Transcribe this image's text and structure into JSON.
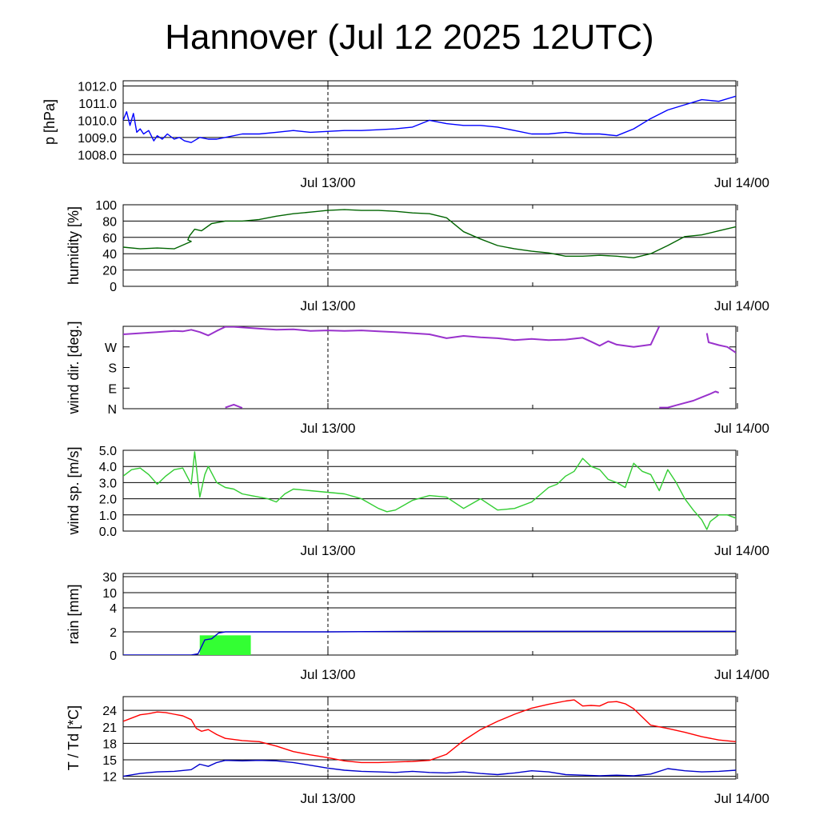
{
  "title": "Hannover (Jul 12 2025 12UTC)",
  "chart_data": [
    {
      "type": "line",
      "ylabel": "p [hPa]",
      "ylim": [
        1007.5,
        1012.3
      ],
      "yticks": [
        "1012.0",
        "1011.0",
        "1010.0",
        "1009.0",
        "1008.0"
      ],
      "ytick_values": [
        1012,
        1011,
        1010,
        1009,
        1008
      ],
      "xticks": [
        "Jul 13/00",
        "Jul 14/00"
      ],
      "xlim_hours": [
        0,
        36
      ],
      "grid": true,
      "series": [
        {
          "color": "#0000ff",
          "x": [
            0,
            0.2,
            0.4,
            0.6,
            0.8,
            1.0,
            1.2,
            1.5,
            1.8,
            2.0,
            2.3,
            2.6,
            3,
            3.3,
            3.6,
            4,
            4.5,
            5,
            5.5,
            6,
            7,
            8,
            9,
            10,
            11,
            12,
            13,
            14,
            15,
            16,
            17,
            18,
            19,
            20,
            21,
            22,
            23,
            24,
            25,
            26,
            27,
            28,
            29,
            30,
            31,
            32,
            33,
            34,
            35,
            36
          ],
          "y": [
            1010.0,
            1010.5,
            1009.7,
            1010.4,
            1009.3,
            1009.5,
            1009.2,
            1009.4,
            1008.8,
            1009.1,
            1008.9,
            1009.2,
            1008.9,
            1009.0,
            1008.8,
            1008.7,
            1009.0,
            1008.9,
            1008.9,
            1009.0,
            1009.2,
            1009.2,
            1009.3,
            1009.4,
            1009.3,
            1009.35,
            1009.4,
            1009.4,
            1009.45,
            1009.5,
            1009.6,
            1010.0,
            1009.8,
            1009.7,
            1009.7,
            1009.6,
            1009.4,
            1009.2,
            1009.2,
            1009.3,
            1009.2,
            1009.2,
            1009.1,
            1009.5,
            1010.1,
            1010.6,
            1010.9,
            1011.2,
            1011.1,
            1011.4
          ]
        }
      ]
    },
    {
      "type": "line",
      "ylabel": "humidity [%]",
      "ylim": [
        0,
        100
      ],
      "yticks": [
        "100",
        "80",
        "60",
        "40",
        "20",
        "0"
      ],
      "ytick_values": [
        100,
        80,
        60,
        40,
        20,
        0
      ],
      "xticks": [
        "Jul 13/00",
        "Jul 14/00"
      ],
      "xlim_hours": [
        0,
        36
      ],
      "grid": true,
      "series": [
        {
          "color": "#006400",
          "x": [
            0,
            1,
            2,
            3,
            4,
            3.8,
            3.9,
            4.2,
            4.6,
            5.2,
            6,
            7,
            8,
            9,
            10,
            11,
            12,
            13,
            14,
            15,
            16,
            17,
            18,
            19,
            20,
            21,
            22,
            23,
            24,
            25,
            26,
            27,
            28,
            29,
            30,
            31,
            32,
            33,
            34,
            35,
            36
          ],
          "y": [
            48,
            46,
            47,
            46,
            55,
            57,
            62,
            70,
            68,
            77,
            80,
            80,
            82,
            86,
            89,
            91,
            93,
            94,
            93,
            93,
            92,
            90,
            89,
            84,
            67,
            58,
            50,
            46,
            43,
            41,
            37,
            37,
            38,
            37,
            35,
            40,
            50,
            61,
            63,
            68,
            73
          ]
        }
      ]
    },
    {
      "type": "scatter",
      "ylabel": "wind dir. [deg.]",
      "ylim": [
        0,
        360
      ],
      "yticks": [
        "W",
        "S",
        "E",
        "N"
      ],
      "ytick_values": [
        270,
        180,
        90,
        0
      ],
      "xticks": [
        "Jul 13/00",
        "Jul 14/00"
      ],
      "xlim_hours": [
        0,
        36
      ],
      "grid": false,
      "series": [
        {
          "color": "#9932cc",
          "x": [
            0,
            1,
            2,
            3,
            3.5,
            4,
            4.5,
            5,
            5.5,
            6,
            6.5,
            7,
            8,
            9,
            10,
            11,
            12,
            13,
            14,
            15,
            16,
            17,
            18,
            19,
            20,
            21,
            22,
            23,
            24,
            25,
            26,
            27,
            27.5,
            28,
            28.5,
            29,
            30,
            31,
            31.5
          ],
          "y": [
            325,
            330,
            335,
            340,
            338,
            345,
            335,
            320,
            340,
            358,
            358,
            355,
            350,
            345,
            347,
            340,
            342,
            340,
            342,
            338,
            335,
            330,
            325,
            308,
            318,
            312,
            308,
            300,
            305,
            300,
            302,
            310,
            293,
            275,
            295,
            280,
            270,
            280,
            360
          ]
        },
        {
          "color": "#9932cc",
          "x": [
            6,
            6.5,
            7
          ],
          "y": [
            5,
            18,
            3
          ]
        },
        {
          "color": "#9932cc",
          "x": [
            31.5,
            32,
            32.5,
            33,
            33.5,
            34,
            34.5,
            34.8,
            35
          ],
          "y": [
            5,
            5,
            15,
            25,
            35,
            50,
            65,
            75,
            70
          ]
        },
        {
          "color": "#9932cc",
          "x": [
            34.3,
            34.4,
            35,
            35.5,
            36
          ],
          "y": [
            330,
            290,
            278,
            270,
            245
          ]
        }
      ]
    },
    {
      "type": "line",
      "ylabel": "wind sp. [m/s]",
      "ylim": [
        0,
        5
      ],
      "yticks": [
        "5.0",
        "4.0",
        "3.0",
        "2.0",
        "1.0",
        "0.0"
      ],
      "ytick_values": [
        5,
        4,
        3,
        2,
        1,
        0
      ],
      "xticks": [
        "Jul 13/00",
        "Jul 14/00"
      ],
      "xlim_hours": [
        0,
        36
      ],
      "grid": true,
      "series": [
        {
          "color": "#32cd32",
          "x": [
            0,
            0.5,
            1,
            1.5,
            2,
            2.5,
            3,
            3.5,
            4,
            4.2,
            4.5,
            4.8,
            5,
            5.5,
            6,
            6.5,
            7,
            7.5,
            8,
            8.5,
            9,
            9.5,
            10,
            11,
            12,
            13,
            14,
            15,
            15.5,
            16,
            17,
            18,
            19,
            20,
            21,
            22,
            23,
            24,
            25,
            25.5,
            26,
            26.5,
            27,
            27.5,
            28,
            28.5,
            29,
            29.5,
            30,
            30.5,
            31,
            31.5,
            32,
            32.5,
            33,
            33.5,
            34,
            34.3,
            34.5,
            35,
            35.5,
            36
          ],
          "y": [
            3.4,
            3.8,
            3.9,
            3.5,
            2.9,
            3.4,
            3.8,
            3.9,
            2.9,
            4.9,
            2.1,
            3.5,
            4.0,
            3.0,
            2.7,
            2.6,
            2.3,
            2.2,
            2.1,
            2.0,
            1.8,
            2.3,
            2.6,
            2.5,
            2.4,
            2.3,
            2.0,
            1.4,
            1.2,
            1.3,
            1.9,
            2.2,
            2.1,
            1.4,
            2.0,
            1.3,
            1.4,
            1.8,
            2.7,
            2.9,
            3.4,
            3.7,
            4.5,
            4.0,
            3.8,
            3.2,
            3.0,
            2.7,
            4.2,
            3.7,
            3.5,
            2.5,
            3.8,
            3.0,
            2.0,
            1.3,
            0.7,
            0.1,
            0.6,
            1.0,
            1.0,
            0.8
          ]
        }
      ]
    },
    {
      "type": "bar",
      "ylabel": "rain [mm]",
      "ylim": [
        0,
        30
      ],
      "yticks": [
        "30",
        "10",
        "4",
        "2",
        "0"
      ],
      "ytick_values": [
        30,
        10,
        4,
        2,
        0
      ],
      "xticks": [
        "Jul 13/00",
        "Jul 14/00"
      ],
      "xlim_hours": [
        0,
        36
      ],
      "grid": true,
      "bars": [
        {
          "color": "#33ff33",
          "x_start": 4.5,
          "x_end": 7.5,
          "value": 1.7
        }
      ],
      "series": [
        {
          "color": "#0000cc",
          "x": [
            0,
            4,
            4.4,
            4.8,
            5.2,
            5.6,
            6,
            8,
            12,
            18,
            24,
            30,
            36
          ],
          "y": [
            0,
            0,
            0.1,
            1.3,
            1.4,
            1.9,
            2.0,
            2.0,
            2.0,
            2.05,
            2.05,
            2.05,
            2.05
          ]
        }
      ]
    },
    {
      "type": "line",
      "ylabel": "T / Td [*C]",
      "ylim": [
        11.5,
        26.5
      ],
      "yticks": [
        "24",
        "21",
        "18",
        "15",
        "12"
      ],
      "ytick_values": [
        24,
        21,
        18,
        15,
        12
      ],
      "xticks": [
        "Jul 13/00",
        "Jul 14/00"
      ],
      "xlim_hours": [
        0,
        36
      ],
      "grid": true,
      "series": [
        {
          "color": "#ff0000",
          "x": [
            0,
            0.5,
            1,
            1.5,
            2,
            2.5,
            3,
            3.5,
            4,
            4.3,
            4.6,
            5,
            5.5,
            6,
            7,
            8,
            9,
            10,
            11,
            12,
            13,
            14,
            15,
            16,
            17,
            18,
            19,
            20,
            21,
            22,
            23,
            24,
            25,
            26,
            26.5,
            27,
            27.5,
            28,
            28.5,
            29,
            29.5,
            30,
            31,
            32,
            33,
            34,
            35,
            36
          ],
          "y": [
            22.0,
            22.6,
            23.2,
            23.4,
            23.7,
            23.6,
            23.3,
            23.0,
            22.3,
            20.7,
            20.2,
            20.5,
            19.6,
            18.9,
            18.5,
            18.3,
            17.5,
            16.5,
            15.9,
            15.4,
            14.8,
            14.5,
            14.5,
            14.6,
            14.7,
            14.9,
            16.0,
            18.5,
            20.5,
            22.0,
            23.3,
            24.4,
            25.1,
            25.7,
            25.9,
            24.8,
            24.9,
            24.8,
            25.5,
            25.6,
            25.2,
            24.3,
            21.3,
            20.7,
            20.0,
            19.2,
            18.6,
            18.3
          ]
        },
        {
          "color": "#0000cc",
          "x": [
            0,
            1,
            2,
            3,
            4,
            4.5,
            5,
            5.5,
            6,
            7,
            8,
            9,
            10,
            11,
            12,
            13,
            14,
            15,
            16,
            17,
            18,
            19,
            20,
            21,
            22,
            23,
            24,
            25,
            26,
            27,
            28,
            29,
            30,
            31,
            32,
            33,
            34,
            35,
            36
          ],
          "y": [
            12.0,
            12.5,
            12.8,
            12.9,
            13.2,
            14.2,
            13.8,
            14.5,
            14.9,
            14.8,
            14.9,
            14.8,
            14.5,
            14.0,
            13.5,
            13.1,
            12.9,
            12.8,
            12.7,
            12.9,
            12.7,
            12.6,
            12.8,
            12.5,
            12.3,
            12.6,
            13.0,
            12.8,
            12.3,
            12.2,
            12.1,
            12.2,
            12.1,
            12.4,
            13.4,
            13.0,
            12.8,
            12.9,
            13.1
          ]
        }
      ]
    }
  ]
}
